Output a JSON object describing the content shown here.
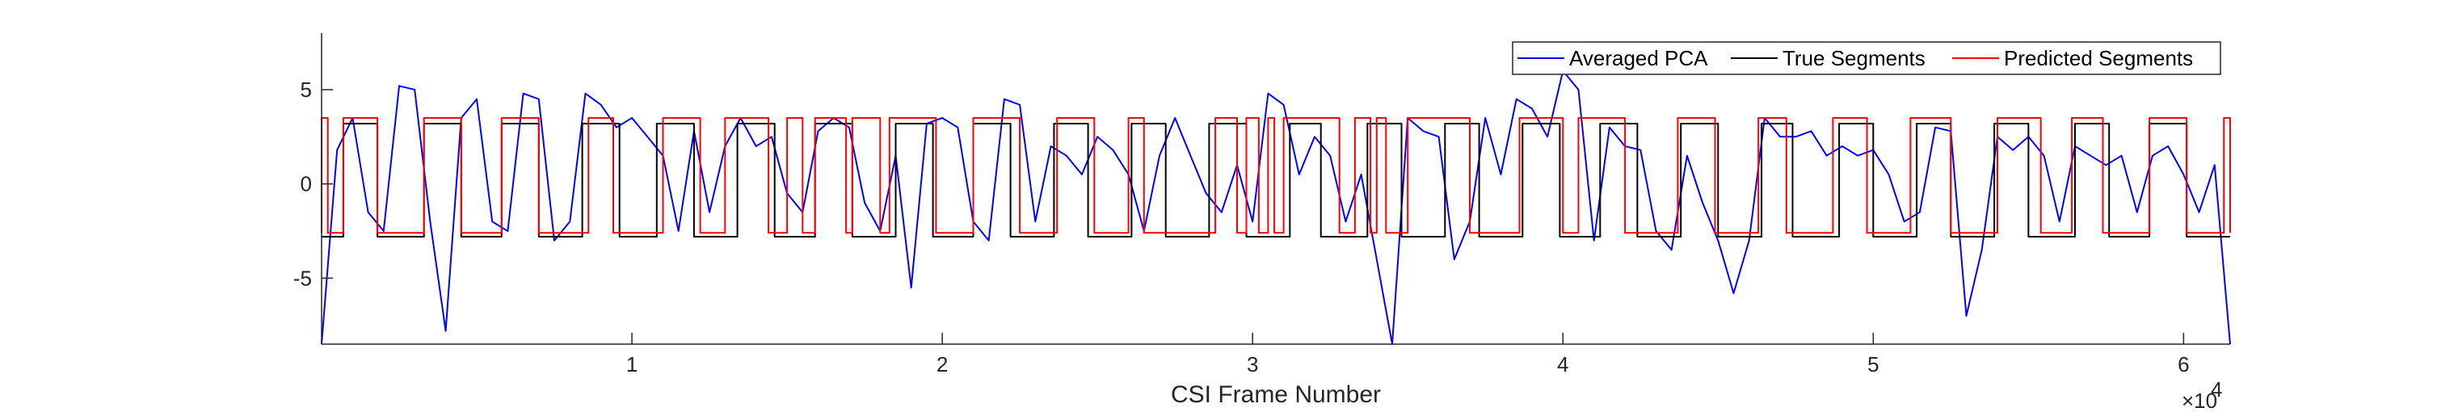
{
  "chart_data": {
    "type": "line",
    "xlabel": "CSI Frame Number",
    "x_exponent_label": "×10",
    "x_exponent_power": "4",
    "xlim": [
      0,
      61500
    ],
    "ylim": [
      -8.5,
      8
    ],
    "x_ticks": [
      10000,
      20000,
      30000,
      40000,
      50000,
      60000
    ],
    "x_tick_labels": [
      "1",
      "2",
      "3",
      "4",
      "5",
      "6"
    ],
    "y_ticks": [
      -5,
      0,
      5
    ],
    "y_tick_labels": [
      "-5",
      "0",
      "5"
    ],
    "legend_position": "top-right",
    "grid": false,
    "series": [
      {
        "name": "Averaged PCA",
        "color": "#0000ff",
        "x": [
          0,
          500,
          1000,
          1500,
          2000,
          2500,
          3000,
          3500,
          4000,
          4500,
          5000,
          5500,
          6000,
          6500,
          7000,
          7500,
          8000,
          8500,
          9000,
          9500,
          10000,
          10500,
          11000,
          11500,
          12000,
          12500,
          13000,
          13500,
          14000,
          14500,
          15000,
          15500,
          16000,
          16500,
          17000,
          17500,
          18000,
          18500,
          19000,
          19500,
          20000,
          20500,
          21000,
          21500,
          22000,
          22500,
          23000,
          23500,
          24000,
          24500,
          25000,
          25500,
          26000,
          26500,
          27000,
          27500,
          28000,
          28500,
          29000,
          29500,
          30000,
          30500,
          31000,
          31500,
          32000,
          32500,
          33000,
          33500,
          34000,
          34500,
          35000,
          35500,
          36000,
          36500,
          37000,
          37500,
          38000,
          38500,
          39000,
          39500,
          40000,
          40500,
          41000,
          41500,
          42000,
          42500,
          43000,
          43500,
          44000,
          44500,
          45000,
          45500,
          46000,
          46500,
          47000,
          47500,
          48000,
          48500,
          49000,
          49500,
          50000,
          50500,
          51000,
          51500,
          52000,
          52500,
          53000,
          53500,
          54000,
          54500,
          55000,
          55500,
          56000,
          56500,
          57000,
          57500,
          58000,
          58500,
          59000,
          59500,
          60000,
          60500,
          61000,
          61500
        ],
        "y": [
          -8.5,
          1.8,
          3.5,
          -1.5,
          -2.5,
          5.2,
          5.0,
          -2.0,
          -7.8,
          3.5,
          4.5,
          -2.0,
          -2.5,
          4.8,
          4.5,
          -3.0,
          -2.0,
          4.8,
          4.2,
          3.0,
          3.5,
          2.5,
          1.5,
          -2.5,
          2.8,
          -1.5,
          2.0,
          3.5,
          2.0,
          2.5,
          -0.5,
          -1.5,
          2.8,
          3.5,
          3.0,
          -1.0,
          -2.5,
          1.5,
          -5.5,
          3.2,
          3.5,
          3.0,
          -2.0,
          -3.0,
          4.5,
          4.2,
          -2.0,
          2.0,
          1.5,
          0.5,
          2.5,
          1.8,
          0.5,
          -2.5,
          1.5,
          3.5,
          1.5,
          -0.5,
          -1.5,
          1.0,
          -2.0,
          4.8,
          4.2,
          0.5,
          2.5,
          1.5,
          -2.0,
          0.5,
          -4.0,
          -8.5,
          3.5,
          2.8,
          2.5,
          -4.0,
          -2.0,
          3.5,
          0.5,
          4.5,
          4.0,
          2.5,
          6.0,
          5.0,
          -3.0,
          3.0,
          2.0,
          1.8,
          -2.5,
          -3.5,
          1.5,
          -1.0,
          -3.0,
          -5.8,
          -3.0,
          3.5,
          2.5,
          2.5,
          2.8,
          1.5,
          2.0,
          1.5,
          1.8,
          0.5,
          -2.0,
          -1.5,
          3.0,
          2.8,
          -7.0,
          -3.5,
          2.5,
          1.8,
          2.5,
          1.5,
          -2.0,
          2.0,
          1.5,
          1.0,
          1.5,
          -1.5,
          1.5,
          2.0,
          0.5,
          -1.5,
          1.0,
          -8.5
        ]
      },
      {
        "name": "True Segments",
        "color": "#000000",
        "high": 3.2,
        "low": -2.8,
        "on_intervals": [
          [
            700,
            1800
          ],
          [
            3300,
            4500
          ],
          [
            5800,
            7000
          ],
          [
            8400,
            9600
          ],
          [
            10800,
            12000
          ],
          [
            13400,
            14600
          ],
          [
            15900,
            17100
          ],
          [
            18500,
            19700
          ],
          [
            21000,
            22200
          ],
          [
            23600,
            24700
          ],
          [
            26100,
            27200
          ],
          [
            28600,
            29800
          ],
          [
            31200,
            32200
          ],
          [
            33700,
            34800
          ],
          [
            36200,
            37300
          ],
          [
            38700,
            39900
          ],
          [
            41200,
            42400
          ],
          [
            43800,
            45000
          ],
          [
            46400,
            47400
          ],
          [
            48900,
            50000
          ],
          [
            51400,
            52500
          ],
          [
            53900,
            55000
          ],
          [
            56500,
            57600
          ],
          [
            58900,
            60100
          ]
        ]
      },
      {
        "name": "Predicted Segments",
        "color": "#ff0000",
        "high": 3.5,
        "low": -2.6,
        "on_intervals": [
          [
            0,
            200
          ],
          [
            700,
            1800
          ],
          [
            3300,
            4500
          ],
          [
            5800,
            7000
          ],
          [
            8600,
            9400
          ],
          [
            11000,
            12200
          ],
          [
            13000,
            14400
          ],
          [
            15000,
            15500
          ],
          [
            15900,
            16900
          ],
          [
            17100,
            18000
          ],
          [
            18300,
            19800
          ],
          [
            21000,
            22500
          ],
          [
            23700,
            24900
          ],
          [
            26000,
            26500
          ],
          [
            28800,
            29500
          ],
          [
            29800,
            30200
          ],
          [
            30500,
            30700
          ],
          [
            31000,
            32800
          ],
          [
            33300,
            33800
          ],
          [
            34000,
            34300
          ],
          [
            35000,
            37000
          ],
          [
            38600,
            40000
          ],
          [
            40500,
            42000
          ],
          [
            43700,
            44900
          ],
          [
            46300,
            47200
          ],
          [
            48700,
            49800
          ],
          [
            51200,
            52500
          ],
          [
            54000,
            55400
          ],
          [
            56400,
            57400
          ],
          [
            58900,
            60100
          ],
          [
            61300,
            61500
          ]
        ]
      }
    ]
  }
}
